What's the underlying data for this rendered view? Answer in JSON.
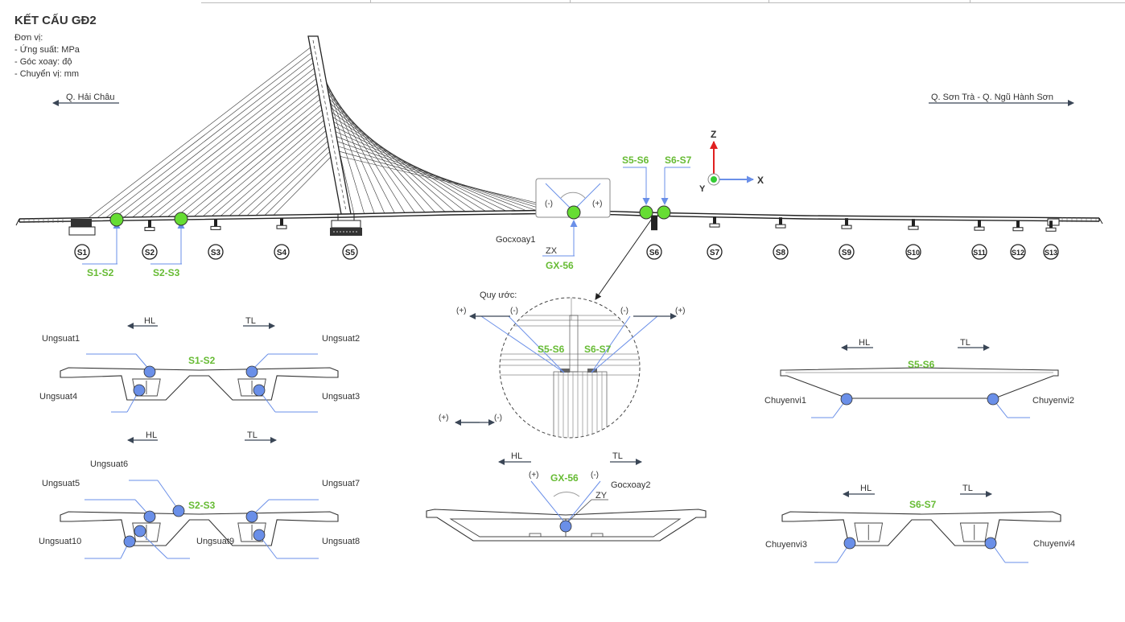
{
  "title": "KẾT CẤU GĐ2",
  "units": {
    "header": "Đơn vị:",
    "lines": [
      "- Ứng suất: MPa",
      "- Góc xoay: độ",
      "- Chuyển vị: mm"
    ]
  },
  "directions": {
    "left": "Q. Hải Châu",
    "right": "Q. Sơn Trà - Q. Ngũ Hành Sơn"
  },
  "axes": {
    "z": "Z",
    "x": "X",
    "y": "Y"
  },
  "colors": {
    "green": "#66cc33",
    "blue": "#6a8fe8",
    "red": "#e02020",
    "label_green": "#66bb33",
    "ink": "#333333"
  },
  "supports": [
    "S1",
    "S2",
    "S3",
    "S4",
    "S5",
    "S6",
    "S7",
    "S8",
    "S9",
    "S10",
    "S11",
    "S12",
    "S13"
  ],
  "markers": {
    "s1s2": "S1-S2",
    "s2s3": "S2-S3",
    "s5s6": "S5-S6",
    "s6s7": "S6-S7",
    "gx56": "GX-56",
    "zx": "ZX",
    "gocxoay1": "Gocxoay1"
  },
  "rotation_signs": {
    "minus": "(-)",
    "plus": "(+)"
  },
  "convention": {
    "title": "Quy ước:",
    "plus": "(+)",
    "minus": "(-)",
    "s5s6": "S5-S6",
    "s6s7": "S6-S7"
  },
  "hl": "HL",
  "tl": "TL",
  "section_s1s2": {
    "label": "S1-S2",
    "stress": [
      "Ungsuat1",
      "Ungsuat2",
      "Ungsuat4",
      "Ungsuat3"
    ]
  },
  "section_s2s3": {
    "label": "S2-S3",
    "stress": [
      "Ungsuat6",
      "Ungsuat5",
      "Ungsuat7",
      "Ungsuat10",
      "Ungsuat9",
      "Ungsuat8"
    ]
  },
  "section_gx56": {
    "label": "GX-56",
    "plus": "(+)",
    "minus": "(-)",
    "gocxoay2": "Gocxoay2",
    "zy": "ZY"
  },
  "section_s5s6": {
    "label": "S5-S6",
    "disp": [
      "Chuyenvi1",
      "Chuyenvi2"
    ]
  },
  "section_s6s7": {
    "label": "S6-S7",
    "disp": [
      "Chuyenvi3",
      "Chuyenvi4"
    ]
  }
}
